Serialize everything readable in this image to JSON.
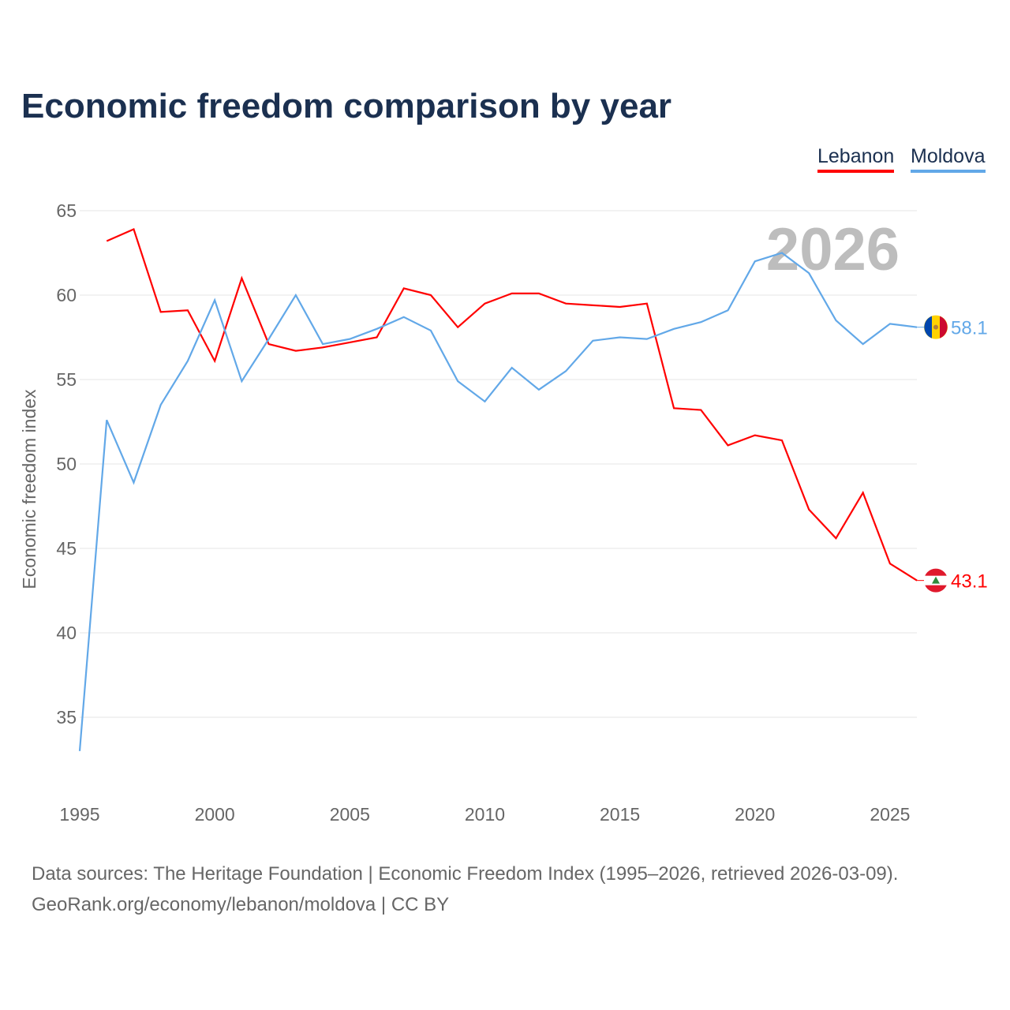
{
  "chart_data": {
    "type": "line",
    "title": "Economic freedom comparison by year",
    "xlabel": "",
    "ylabel": "Economic freedom index",
    "xlim": [
      1995,
      2026
    ],
    "ylim": [
      31,
      65
    ],
    "yticks": [
      35,
      40,
      45,
      50,
      55,
      60,
      65
    ],
    "xticks": [
      1995,
      2000,
      2005,
      2010,
      2015,
      2020,
      2025
    ],
    "grid": true,
    "legend_position": "top-right",
    "watermark_year": "2026",
    "series": [
      {
        "name": "Lebanon",
        "color": "#ff0000",
        "end_label": "43.1",
        "x": [
          1996,
          1997,
          1998,
          1999,
          2000,
          2001,
          2002,
          2003,
          2004,
          2005,
          2006,
          2007,
          2008,
          2009,
          2010,
          2011,
          2012,
          2013,
          2014,
          2015,
          2016,
          2017,
          2018,
          2019,
          2020,
          2021,
          2022,
          2023,
          2024,
          2025,
          2026
        ],
        "values": [
          63.2,
          63.9,
          59.0,
          59.1,
          56.1,
          61.0,
          57.1,
          56.7,
          56.9,
          57.2,
          57.5,
          60.4,
          60.0,
          58.1,
          59.5,
          60.1,
          60.1,
          59.5,
          59.4,
          59.3,
          59.5,
          53.3,
          53.2,
          51.1,
          51.7,
          51.4,
          47.3,
          45.6,
          48.3,
          44.1,
          43.1
        ]
      },
      {
        "name": "Moldova",
        "color": "#62a8e8",
        "end_label": "58.1",
        "x": [
          1995,
          1996,
          1997,
          1998,
          1999,
          2000,
          2001,
          2002,
          2003,
          2004,
          2005,
          2006,
          2007,
          2008,
          2009,
          2010,
          2011,
          2012,
          2013,
          2014,
          2015,
          2016,
          2017,
          2018,
          2019,
          2020,
          2021,
          2022,
          2023,
          2024,
          2025,
          2026
        ],
        "values": [
          33.0,
          52.6,
          48.9,
          53.5,
          56.1,
          59.7,
          54.9,
          57.4,
          60.0,
          57.1,
          57.4,
          58.0,
          58.7,
          57.9,
          54.9,
          53.7,
          55.7,
          54.4,
          55.5,
          57.3,
          57.5,
          57.4,
          58.0,
          58.4,
          59.1,
          62.0,
          62.5,
          61.3,
          58.5,
          57.1,
          58.3,
          58.1
        ]
      }
    ]
  },
  "source_line1": "Data sources: The Heritage Foundation | Economic Freedom Index (1995–2026, retrieved 2026-03-09).",
  "source_line2": "GeoRank.org/economy/lebanon/moldova | CC BY"
}
